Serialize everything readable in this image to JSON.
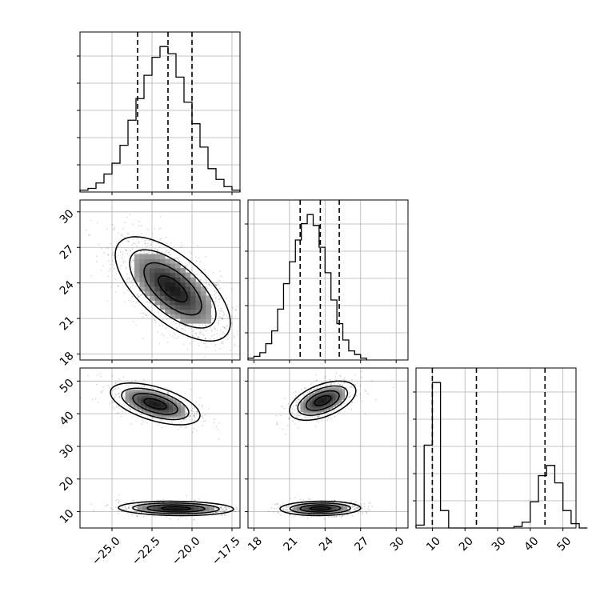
{
  "chart_data": {
    "type": "corner",
    "grid": true,
    "parameters": [
      {
        "range": [
          -27.0,
          -17.0
        ],
        "ticks": [
          -25.0,
          -22.5,
          -20.0,
          -17.5
        ],
        "tick_labels": [
          "−25.0",
          "−22.5",
          "−20.0",
          "−17.5"
        ],
        "quantiles": [
          -23.4,
          -21.5,
          -20.0
        ],
        "hist_edges_start": -27.0,
        "hist_bin_width": 0.5,
        "hist_counts": [
          1,
          2,
          5,
          10,
          16,
          26,
          40,
          52,
          65,
          75,
          81,
          77,
          64,
          50,
          38,
          25,
          13,
          7,
          3,
          1
        ]
      },
      {
        "range": [
          17.5,
          31.0
        ],
        "ticks": [
          18,
          21,
          24,
          27,
          30
        ],
        "tick_labels": [
          "18",
          "21",
          "24",
          "27",
          "30"
        ],
        "quantiles": [
          21.9,
          23.6,
          25.2
        ],
        "hist_edges_start": 17.5,
        "hist_bin_width": 0.5,
        "hist_counts": [
          1,
          2,
          4,
          9,
          16,
          28,
          42,
          54,
          66,
          75,
          80,
          74,
          62,
          48,
          33,
          20,
          11,
          5,
          3,
          1
        ]
      },
      {
        "range": [
          5.0,
          54.0
        ],
        "ticks": [
          10,
          20,
          30,
          40,
          50
        ],
        "tick_labels": [
          "10",
          "20",
          "30",
          "40",
          "50"
        ],
        "quantiles": [
          10.0,
          23.5,
          44.5
        ],
        "hist_edges_start": 5.0,
        "hist_bin_width": 2.5,
        "hist_counts": [
          2,
          57,
          100,
          12,
          0,
          0,
          0,
          0,
          0,
          0,
          0,
          0,
          1,
          4,
          18,
          36,
          43,
          31,
          12,
          3,
          0
        ]
      }
    ],
    "contour_2d": [
      {
        "row": 1,
        "col": 0,
        "clusters": [
          {
            "center": [
              -21.2,
              23.5
            ],
            "sigma": [
              1.8,
              2.2
            ],
            "rho": -0.65,
            "weight": 1.0
          }
        ]
      },
      {
        "row": 2,
        "col": 0,
        "clusters": [
          {
            "center": [
              -22.3,
              43.0
            ],
            "sigma": [
              1.4,
              3.2
            ],
            "rho": -0.55,
            "weight": 0.45
          },
          {
            "center": [
              -21.0,
              11.0
            ],
            "sigma": [
              1.8,
              1.1
            ],
            "rho": -0.1,
            "weight": 0.55
          }
        ]
      },
      {
        "row": 2,
        "col": 1,
        "clusters": [
          {
            "center": [
              23.8,
              44.0
            ],
            "sigma": [
              1.4,
              3.0
            ],
            "rho": 0.5,
            "weight": 0.45
          },
          {
            "center": [
              23.6,
              11.0
            ],
            "sigma": [
              1.7,
              1.1
            ],
            "rho": 0.05,
            "weight": 0.55
          }
        ]
      }
    ],
    "contour_levels_sigma": [
      0.5,
      1.0,
      1.5,
      2.0
    ]
  }
}
